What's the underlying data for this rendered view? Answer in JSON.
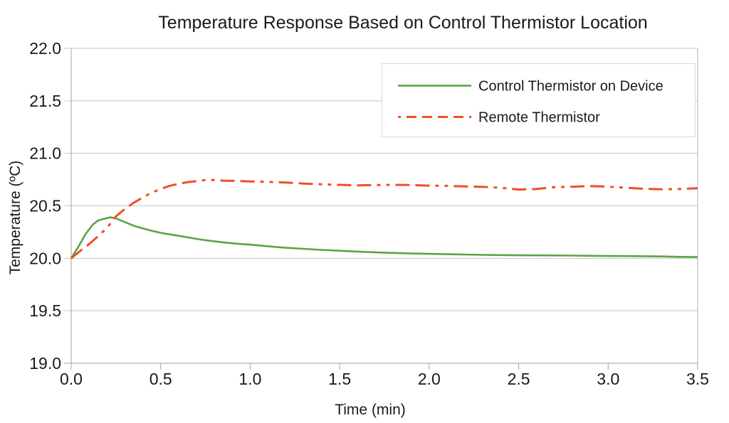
{
  "page": {
    "background": "#ffffff"
  },
  "chart_data": {
    "type": "line",
    "title": "Temperature Response Based on Control Thermistor Location",
    "xlabel": "Time (min)",
    "ylabel": "Temperature (ºC)",
    "xlim": [
      0,
      3.5
    ],
    "ylim": [
      19.0,
      22.0
    ],
    "xticks": [
      0,
      0.5,
      1,
      1.5,
      2,
      2.5,
      3,
      3.5
    ],
    "yticks": [
      19,
      19.5,
      20,
      20.5,
      21,
      21.5,
      22
    ],
    "tick_label_format": "one-decimal",
    "grid": "horizontal",
    "legend_position": "top-right",
    "colors": {
      "grid": "#c6c6c6",
      "axis_frame": "#b0b0b0",
      "text": "#1a1a1a",
      "legend_border": "#d9d9d9",
      "plot_background": "#ffffff"
    },
    "series": [
      {
        "name": "Control Thermistor on Device",
        "color": "#58A445",
        "line_style": "solid",
        "line_width": 2.6,
        "points": [
          [
            0.0,
            20.0
          ],
          [
            0.04,
            20.11
          ],
          [
            0.08,
            20.23
          ],
          [
            0.12,
            20.32
          ],
          [
            0.15,
            20.36
          ],
          [
            0.18,
            20.375
          ],
          [
            0.22,
            20.39
          ],
          [
            0.25,
            20.38
          ],
          [
            0.3,
            20.345
          ],
          [
            0.35,
            20.31
          ],
          [
            0.4,
            20.285
          ],
          [
            0.45,
            20.262
          ],
          [
            0.5,
            20.243
          ],
          [
            0.55,
            20.228
          ],
          [
            0.6,
            20.214
          ],
          [
            0.65,
            20.2
          ],
          [
            0.7,
            20.185
          ],
          [
            0.75,
            20.172
          ],
          [
            0.8,
            20.162
          ],
          [
            0.85,
            20.152
          ],
          [
            0.9,
            20.143
          ],
          [
            0.95,
            20.136
          ],
          [
            1.0,
            20.13
          ],
          [
            1.1,
            20.115
          ],
          [
            1.2,
            20.1
          ],
          [
            1.3,
            20.09
          ],
          [
            1.4,
            20.08
          ],
          [
            1.5,
            20.072
          ],
          [
            1.6,
            20.064
          ],
          [
            1.7,
            20.057
          ],
          [
            1.8,
            20.051
          ],
          [
            1.9,
            20.046
          ],
          [
            2.0,
            20.042
          ],
          [
            2.1,
            20.039
          ],
          [
            2.2,
            20.036
          ],
          [
            2.3,
            20.033
          ],
          [
            2.4,
            20.031
          ],
          [
            2.5,
            20.029
          ],
          [
            2.6,
            20.028
          ],
          [
            2.7,
            20.027
          ],
          [
            2.8,
            20.026
          ],
          [
            2.9,
            20.024
          ],
          [
            3.0,
            20.022
          ],
          [
            3.1,
            20.021
          ],
          [
            3.2,
            20.02
          ],
          [
            3.3,
            20.018
          ],
          [
            3.4,
            20.014
          ],
          [
            3.5,
            20.012
          ]
        ]
      },
      {
        "name": "Remote Thermistor",
        "color": "#EE4F2B",
        "line_style": "dash-dash-dot-dot",
        "line_width": 3,
        "points": [
          [
            0.0,
            20.0
          ],
          [
            0.05,
            20.07
          ],
          [
            0.1,
            20.135
          ],
          [
            0.15,
            20.21
          ],
          [
            0.2,
            20.29
          ],
          [
            0.25,
            20.4
          ],
          [
            0.3,
            20.47
          ],
          [
            0.35,
            20.53
          ],
          [
            0.4,
            20.58
          ],
          [
            0.45,
            20.625
          ],
          [
            0.5,
            20.66
          ],
          [
            0.55,
            20.69
          ],
          [
            0.6,
            20.71
          ],
          [
            0.65,
            20.725
          ],
          [
            0.7,
            20.735
          ],
          [
            0.75,
            20.745
          ],
          [
            0.8,
            20.745
          ],
          [
            0.85,
            20.74
          ],
          [
            0.9,
            20.738
          ],
          [
            0.95,
            20.735
          ],
          [
            1.0,
            20.732
          ],
          [
            1.1,
            20.728
          ],
          [
            1.2,
            20.722
          ],
          [
            1.3,
            20.712
          ],
          [
            1.4,
            20.705
          ],
          [
            1.5,
            20.7
          ],
          [
            1.6,
            20.695
          ],
          [
            1.7,
            20.698
          ],
          [
            1.8,
            20.7
          ],
          [
            1.9,
            20.698
          ],
          [
            2.0,
            20.692
          ],
          [
            2.1,
            20.69
          ],
          [
            2.2,
            20.685
          ],
          [
            2.3,
            20.68
          ],
          [
            2.4,
            20.672
          ],
          [
            2.5,
            20.655
          ],
          [
            2.6,
            20.66
          ],
          [
            2.7,
            20.678
          ],
          [
            2.8,
            20.682
          ],
          [
            2.9,
            20.688
          ],
          [
            3.0,
            20.682
          ],
          [
            3.1,
            20.672
          ],
          [
            3.2,
            20.662
          ],
          [
            3.3,
            20.658
          ],
          [
            3.4,
            20.66
          ],
          [
            3.5,
            20.668
          ]
        ]
      }
    ]
  }
}
